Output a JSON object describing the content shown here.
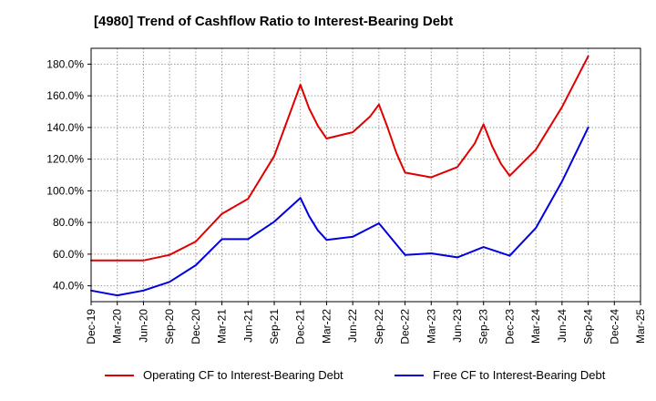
{
  "title": "[4980]  Trend of Cashflow Ratio to Interest-Bearing Debt",
  "chart_data": {
    "type": "line",
    "title": "[4980]  Trend of Cashflow Ratio to Interest-Bearing Debt",
    "xlabel": "",
    "ylabel": "",
    "x_ticks": [
      "Dec-19",
      "Mar-20",
      "Jun-20",
      "Sep-20",
      "Dec-20",
      "Mar-21",
      "Jun-21",
      "Sep-21",
      "Dec-21",
      "Mar-22",
      "Jun-22",
      "Sep-22",
      "Dec-22",
      "Mar-23",
      "Jun-23",
      "Sep-23",
      "Dec-23",
      "Mar-24",
      "Jun-24",
      "Sep-24",
      "Dec-24",
      "Mar-25"
    ],
    "y_ticks": [
      "40.0%",
      "60.0%",
      "80.0%",
      "100.0%",
      "120.0%",
      "140.0%",
      "160.0%",
      "180.0%"
    ],
    "y_tick_values": [
      40,
      60,
      80,
      100,
      120,
      140,
      160,
      180
    ],
    "ylim": [
      30,
      190
    ],
    "y_unit": "%",
    "grid": true,
    "grid_style": "dotted",
    "legend_position": "bottom",
    "series": [
      {
        "name": "Operating CF to Interest-Bearing Debt",
        "color": "#e00000",
        "points": [
          [
            "Dec-19",
            56
          ],
          [
            "Mar-20",
            56
          ],
          [
            "Jun-20",
            56
          ],
          [
            "Sep-20",
            59.5
          ],
          [
            "Dec-20",
            68
          ],
          [
            "Mar-21",
            85.5
          ],
          [
            "Jun-21",
            95
          ],
          [
            "Sep-21",
            122
          ],
          [
            "Dec-21",
            167
          ],
          [
            "Jan-22",
            152
          ],
          [
            "Feb-22",
            141
          ],
          [
            "Mar-22",
            133
          ],
          [
            "Jun-22",
            137
          ],
          [
            "Aug-22",
            147
          ],
          [
            "Sep-22",
            154.5
          ],
          [
            "Oct-22",
            140
          ],
          [
            "Nov-22",
            124
          ],
          [
            "Dec-22",
            111.5
          ],
          [
            "Mar-23",
            108.5
          ],
          [
            "Jun-23",
            115
          ],
          [
            "Aug-23",
            130
          ],
          [
            "Sep-23",
            142
          ],
          [
            "Oct-23",
            128
          ],
          [
            "Nov-23",
            117
          ],
          [
            "Dec-23",
            109.5
          ],
          [
            "Mar-24",
            126
          ],
          [
            "Jun-24",
            153
          ],
          [
            "Sep-24",
            185
          ]
        ]
      },
      {
        "name": "Free CF to Interest-Bearing Debt",
        "color": "#0000e0",
        "points": [
          [
            "Dec-19",
            37
          ],
          [
            "Mar-20",
            34
          ],
          [
            "Jun-20",
            37
          ],
          [
            "Sep-20",
            42.5
          ],
          [
            "Dec-20",
            53
          ],
          [
            "Mar-21",
            69.5
          ],
          [
            "Jun-21",
            69.5
          ],
          [
            "Sep-21",
            80.5
          ],
          [
            "Dec-21",
            95.5
          ],
          [
            "Jan-22",
            84
          ],
          [
            "Feb-22",
            75
          ],
          [
            "Mar-22",
            69
          ],
          [
            "Jun-22",
            71
          ],
          [
            "Sep-22",
            79.5
          ],
          [
            "Dec-22",
            59.5
          ],
          [
            "Mar-23",
            60.5
          ],
          [
            "Jun-23",
            58
          ],
          [
            "Sep-23",
            64.5
          ],
          [
            "Dec-23",
            59
          ],
          [
            "Mar-24",
            76.5
          ],
          [
            "Jun-24",
            106
          ],
          [
            "Sep-24",
            140
          ]
        ]
      }
    ]
  }
}
